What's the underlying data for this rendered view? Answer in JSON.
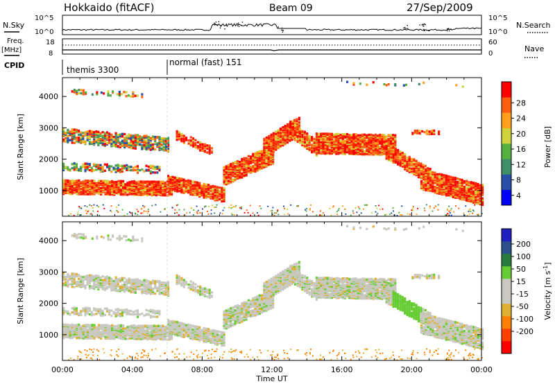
{
  "header": {
    "title": "Hokkaido (fitACF)",
    "beam": "Beam 09",
    "date": "27/Sep/2009"
  },
  "top_panels": {
    "nsky_label": "N.Sky",
    "nsky_ticks": [
      "10^5",
      "10^0"
    ],
    "nsearch_label": "N.Search",
    "freq_label_1": "Freq.",
    "freq_label_2": "[MHz]",
    "freq_ticks": [
      "18",
      "8"
    ],
    "nave_label": "Nave",
    "nave_ticks": [
      "60",
      "0"
    ],
    "cpid_label": "CPID",
    "cpid_segments": [
      "themis 3300",
      "normal (fast) 151"
    ]
  },
  "colors": {
    "power_scale": [
      "#0000ff",
      "#2a4fa8",
      "#3f8f6a",
      "#55b040",
      "#cfd23a",
      "#ff9f1a",
      "#ff6010",
      "#ff0000"
    ],
    "velocity_scale": [
      "#ff0000",
      "#ff4000",
      "#ff8000",
      "#e0b030",
      "#c8c8c0",
      "#c8c8c0",
      "#66cc33",
      "#2a7a40",
      "#2a4f8a",
      "#2020c0"
    ]
  },
  "chart_data": [
    {
      "type": "heatmap",
      "title": "Power",
      "ylabel": "Slant Range [km]",
      "y_ticks": [
        "4000",
        "3000",
        "2000",
        "1000"
      ],
      "colorbar_label": "Power [dB]",
      "colorbar_ticks": [
        "28",
        "24",
        "20",
        "16",
        "12",
        "8",
        "4"
      ],
      "xlim": [
        0,
        24
      ],
      "ylim": [
        180,
        4600
      ]
    },
    {
      "type": "heatmap",
      "title": "Velocity",
      "ylabel": "Slant Range [km]",
      "y_ticks": [
        "4000",
        "3000",
        "2000",
        "1000"
      ],
      "colorbar_label": "Velocity [m s",
      "colorbar_label_sup": "-1",
      "colorbar_label_end": "]",
      "colorbar_ticks": [
        "200",
        "100",
        "50",
        "15",
        "-15",
        "-50",
        "-100",
        "-200"
      ],
      "xlabel": "Time UT",
      "x_ticks": [
        "00:00",
        "04:00",
        "08:00",
        "12:00",
        "16:00",
        "20:00",
        "00:00"
      ],
      "xlim": [
        0,
        24
      ],
      "ylim": [
        180,
        4600
      ]
    }
  ]
}
